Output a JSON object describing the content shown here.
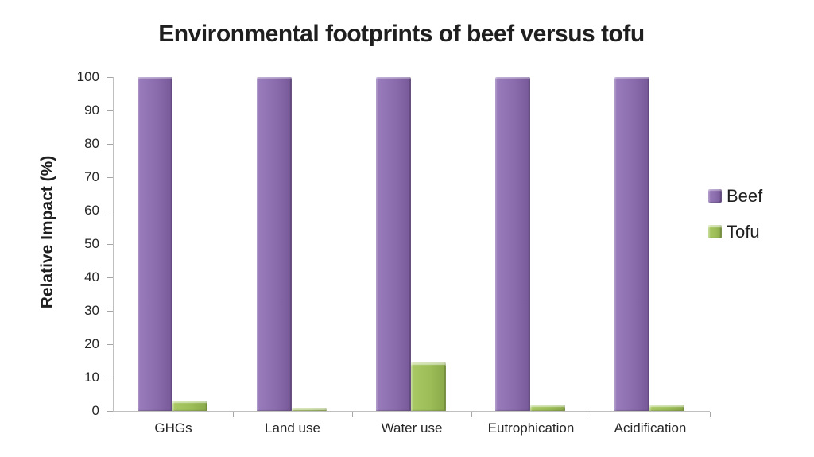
{
  "chart_data": {
    "type": "bar",
    "title": "Environmental footprints of beef versus tofu",
    "ylabel": "Relative Impact (%)",
    "xlabel": "",
    "categories": [
      "GHGs",
      "Land use",
      "Water use",
      "Eutrophication",
      "Acidification"
    ],
    "series": [
      {
        "name": "Beef",
        "color": "#8a6cac",
        "values": [
          100,
          100,
          100,
          100,
          100
        ]
      },
      {
        "name": "Tofu",
        "color": "#9cbd58",
        "values": [
          3,
          1,
          14.5,
          2,
          2
        ]
      }
    ],
    "ylim": [
      0,
      100
    ],
    "ytick_step": 10,
    "yticks": [
      0,
      10,
      20,
      30,
      40,
      50,
      60,
      70,
      80,
      90,
      100
    ],
    "grid": false,
    "legend_position": "right",
    "axis_color": "#bfbfbf",
    "tick_color": "#a6a6a6",
    "text_color": "#262626"
  }
}
